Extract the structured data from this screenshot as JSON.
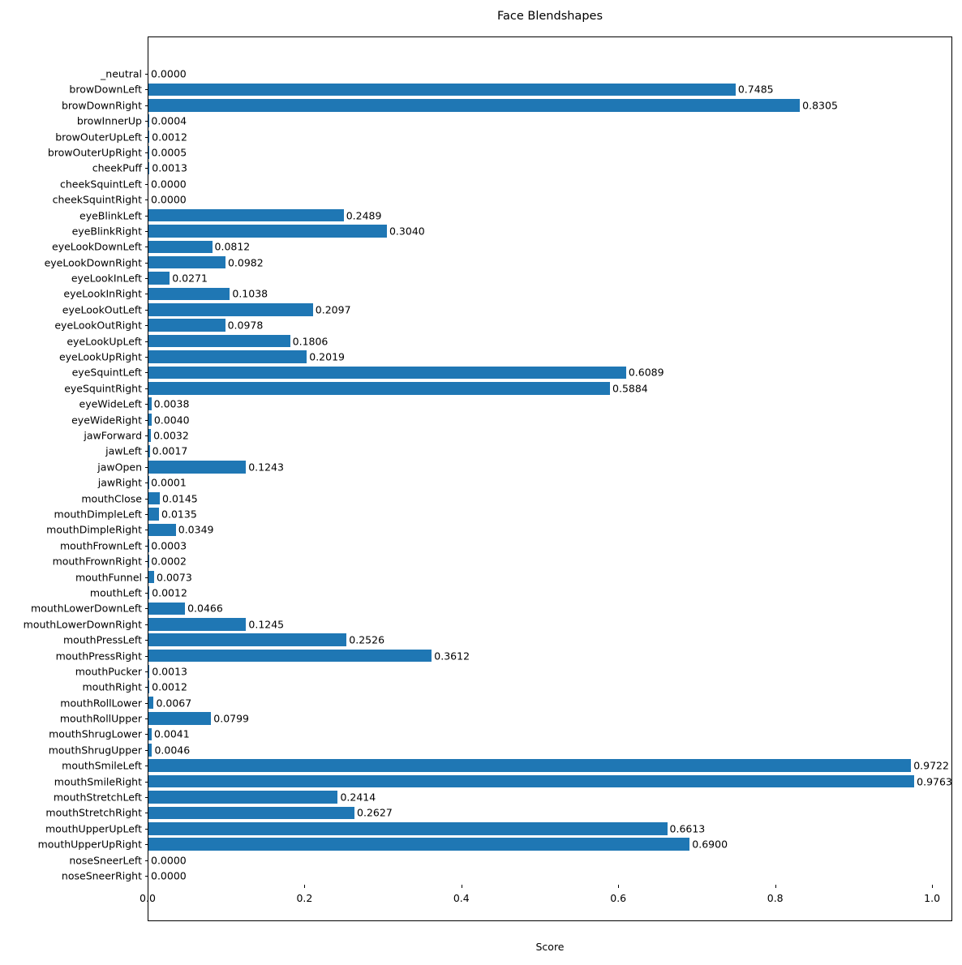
{
  "chart_data": {
    "type": "bar",
    "orientation": "horizontal",
    "title": "Face Blendshapes",
    "xlabel": "Score",
    "ylabel": "",
    "xlim": [
      0,
      1.0237
    ],
    "x_ticks": [
      0.0,
      0.2,
      0.4,
      0.6,
      0.8,
      1.0
    ],
    "x_tick_labels": [
      "0.0",
      "0.2",
      "0.4",
      "0.6",
      "0.8",
      "1.0"
    ],
    "bar_color": "#1f77b4",
    "grid": false,
    "legend": null,
    "categories": [
      "_neutral",
      "browDownLeft",
      "browDownRight",
      "browInnerUp",
      "browOuterUpLeft",
      "browOuterUpRight",
      "cheekPuff",
      "cheekSquintLeft",
      "cheekSquintRight",
      "eyeBlinkLeft",
      "eyeBlinkRight",
      "eyeLookDownLeft",
      "eyeLookDownRight",
      "eyeLookInLeft",
      "eyeLookInRight",
      "eyeLookOutLeft",
      "eyeLookOutRight",
      "eyeLookUpLeft",
      "eyeLookUpRight",
      "eyeSquintLeft",
      "eyeSquintRight",
      "eyeWideLeft",
      "eyeWideRight",
      "jawForward",
      "jawLeft",
      "jawOpen",
      "jawRight",
      "mouthClose",
      "mouthDimpleLeft",
      "mouthDimpleRight",
      "mouthFrownLeft",
      "mouthFrownRight",
      "mouthFunnel",
      "mouthLeft",
      "mouthLowerDownLeft",
      "mouthLowerDownRight",
      "mouthPressLeft",
      "mouthPressRight",
      "mouthPucker",
      "mouthRight",
      "mouthRollLower",
      "mouthRollUpper",
      "mouthShrugLower",
      "mouthShrugUpper",
      "mouthSmileLeft",
      "mouthSmileRight",
      "mouthStretchLeft",
      "mouthStretchRight",
      "mouthUpperUpLeft",
      "mouthUpperUpRight",
      "noseSneerLeft",
      "noseSneerRight"
    ],
    "values": [
      0.0,
      0.7485,
      0.8305,
      0.0004,
      0.0012,
      0.0005,
      0.0013,
      0.0,
      0.0,
      0.2489,
      0.304,
      0.0812,
      0.0982,
      0.0271,
      0.1038,
      0.2097,
      0.0978,
      0.1806,
      0.2019,
      0.6089,
      0.5884,
      0.0038,
      0.004,
      0.0032,
      0.0017,
      0.1243,
      0.0001,
      0.0145,
      0.0135,
      0.0349,
      0.0003,
      0.0002,
      0.0073,
      0.0012,
      0.0466,
      0.1245,
      0.2526,
      0.3612,
      0.0013,
      0.0012,
      0.0067,
      0.0799,
      0.0041,
      0.0046,
      0.9722,
      0.9763,
      0.2414,
      0.2627,
      0.6613,
      0.69,
      0.0,
      0.0
    ],
    "value_labels": [
      "0.0000",
      "0.7485",
      "0.8305",
      "0.0004",
      "0.0012",
      "0.0005",
      "0.0013",
      "0.0000",
      "0.0000",
      "0.2489",
      "0.3040",
      "0.0812",
      "0.0982",
      "0.0271",
      "0.1038",
      "0.2097",
      "0.0978",
      "0.1806",
      "0.2019",
      "0.6089",
      "0.5884",
      "0.0038",
      "0.0040",
      "0.0032",
      "0.0017",
      "0.1243",
      "0.0001",
      "0.0145",
      "0.0135",
      "0.0349",
      "0.0003",
      "0.0002",
      "0.0073",
      "0.0012",
      "0.0466",
      "0.1245",
      "0.2526",
      "0.3612",
      "0.0013",
      "0.0012",
      "0.0067",
      "0.0799",
      "0.0041",
      "0.0046",
      "0.9722",
      "0.9763",
      "0.2414",
      "0.2627",
      "0.6613",
      "0.6900",
      "0.0000",
      "0.0000"
    ]
  }
}
